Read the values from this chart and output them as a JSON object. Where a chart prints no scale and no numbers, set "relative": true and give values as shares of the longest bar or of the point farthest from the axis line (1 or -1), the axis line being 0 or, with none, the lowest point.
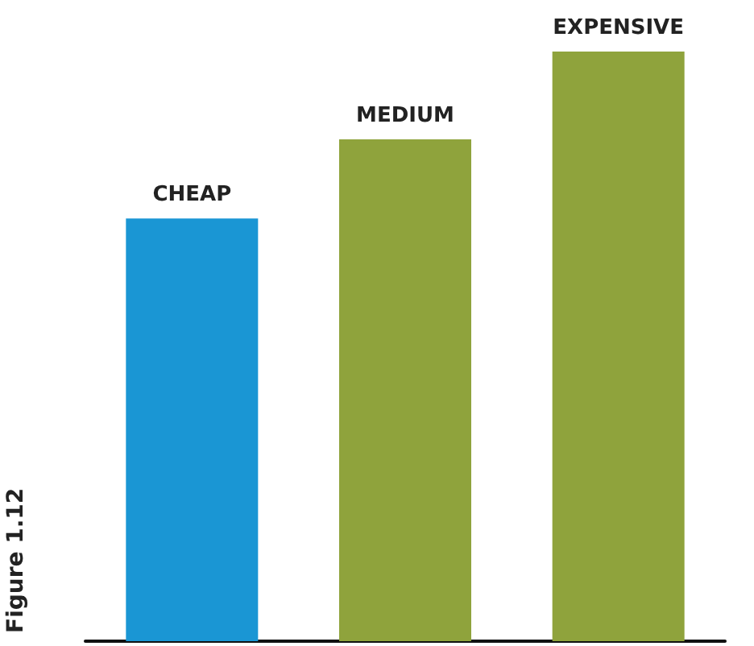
{
  "chart_data": {
    "type": "bar",
    "relative": true,
    "categories": [
      "CHEAP",
      "MEDIUM",
      "EXPENSIVE"
    ],
    "values": [
      0.717,
      0.851,
      1
    ],
    "colors": [
      "#1a96d4",
      "#8fa33c",
      "#8fa33c"
    ],
    "annotations": [
      "Figure 1.12"
    ]
  }
}
